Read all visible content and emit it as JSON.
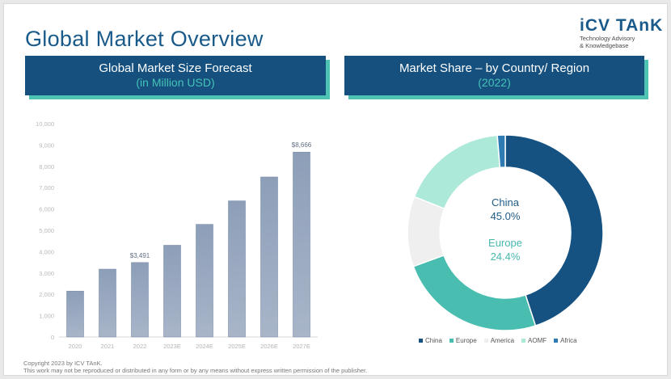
{
  "page": {
    "title": "Global Market Overview",
    "logo": {
      "name": "iCV TAnK",
      "tagline1": "Technology Advisory",
      "tagline2": "& Knowledgebase"
    },
    "left_header": {
      "line1": "Global Market Size Forecast",
      "line2": "(in Million USD)"
    },
    "right_header": {
      "line1": "Market Share – by Country/ Region",
      "line2": "(2022)"
    },
    "footer": {
      "line1": "Copyright  2023 by ICV TAnK.",
      "line2": "This work may not be reproduced or distributed in any form or by any means without express written permission of the publisher."
    }
  },
  "colors": {
    "title": "#1a5a8a",
    "header_bg": "#15507f",
    "header_shadow": "#4ec3b4",
    "header_accent": "#46c3b6",
    "bar_fill_top": "#8d9eb8",
    "bar_fill_bottom": "#a8b5c9"
  },
  "chart_data": [
    {
      "type": "bar",
      "categories": [
        "2020",
        "2021",
        "2022",
        "2023E",
        "2024E",
        "2025E",
        "2026E",
        "2027E"
      ],
      "values": [
        2150,
        3180,
        3491,
        4300,
        5280,
        6380,
        7500,
        8666
      ],
      "data_labels": [
        {
          "category": "2022",
          "text": "$3,491"
        },
        {
          "category": "2027E",
          "text": "$8,666"
        }
      ],
      "yticks": [
        "0",
        "1,000",
        "2,000",
        "3,000",
        "4,000",
        "5,000",
        "6,000",
        "7,000",
        "8,000",
        "9,000",
        "10,000"
      ],
      "ylim": [
        0,
        10000
      ],
      "grid": false
    },
    {
      "type": "pie",
      "donut": true,
      "labels": [
        "China",
        "Europe",
        "America",
        "AOMF",
        "Africa"
      ],
      "values": [
        45.0,
        24.4,
        11.6,
        17.7,
        1.3
      ],
      "colors": [
        "#155282",
        "#48bdb0",
        "#efefef",
        "#ace9d9",
        "#2e7ab2"
      ],
      "center_labels": [
        {
          "name": "China",
          "value": "45.0%",
          "color": "#1f5b87"
        },
        {
          "name": "Europe",
          "value": "24.4%",
          "color": "#46b9ad"
        }
      ],
      "legend_position": "bottom"
    }
  ]
}
